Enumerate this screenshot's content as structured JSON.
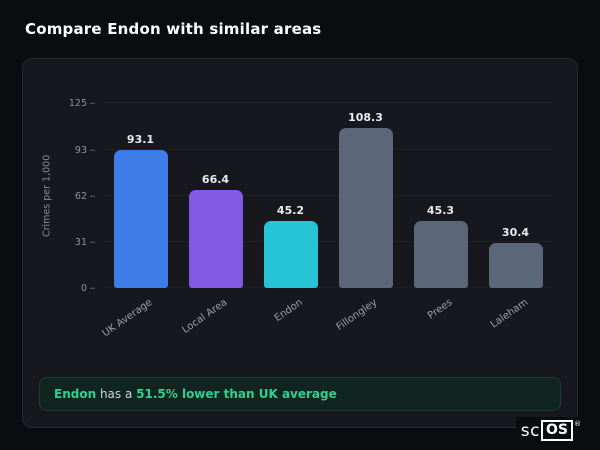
{
  "page": {
    "title": "Compare Endon with similar areas"
  },
  "chart_data": {
    "type": "bar",
    "title": "",
    "categories": [
      "UK Average",
      "Local Area",
      "Endon",
      "Fillongley",
      "Prees",
      "Laleham"
    ],
    "values": [
      93.1,
      66.4,
      45.2,
      108.3,
      45.3,
      30.4
    ],
    "value_labels": [
      "93.1",
      "66.4",
      "45.2",
      "108.3",
      "45.3",
      "30.4"
    ],
    "colors": [
      "#3e7ce8",
      "#8159e2",
      "#27c3d6",
      "#5b6678",
      "#5b6678",
      "#5b6678"
    ],
    "xlabel": "",
    "ylabel": "Crimes per 1,000",
    "ylim": [
      0,
      125
    ],
    "yticks": [
      0,
      31,
      62,
      93,
      125
    ],
    "grid": "faint-horizontal",
    "legend": false
  },
  "note": {
    "area": "Endon",
    "middle": " has a ",
    "highlight": "51.5% lower than UK average"
  },
  "logo": {
    "sc": "sc",
    "os": "OS",
    "reg": "®"
  },
  "colors": {
    "background": "#0b0c10",
    "card_background": "#16181e",
    "accent_green": "#30d08e",
    "bar_blue": "#3e7ce8",
    "bar_purple": "#8159e2",
    "bar_cyan": "#27c3d6",
    "bar_slate": "#5b6678"
  }
}
